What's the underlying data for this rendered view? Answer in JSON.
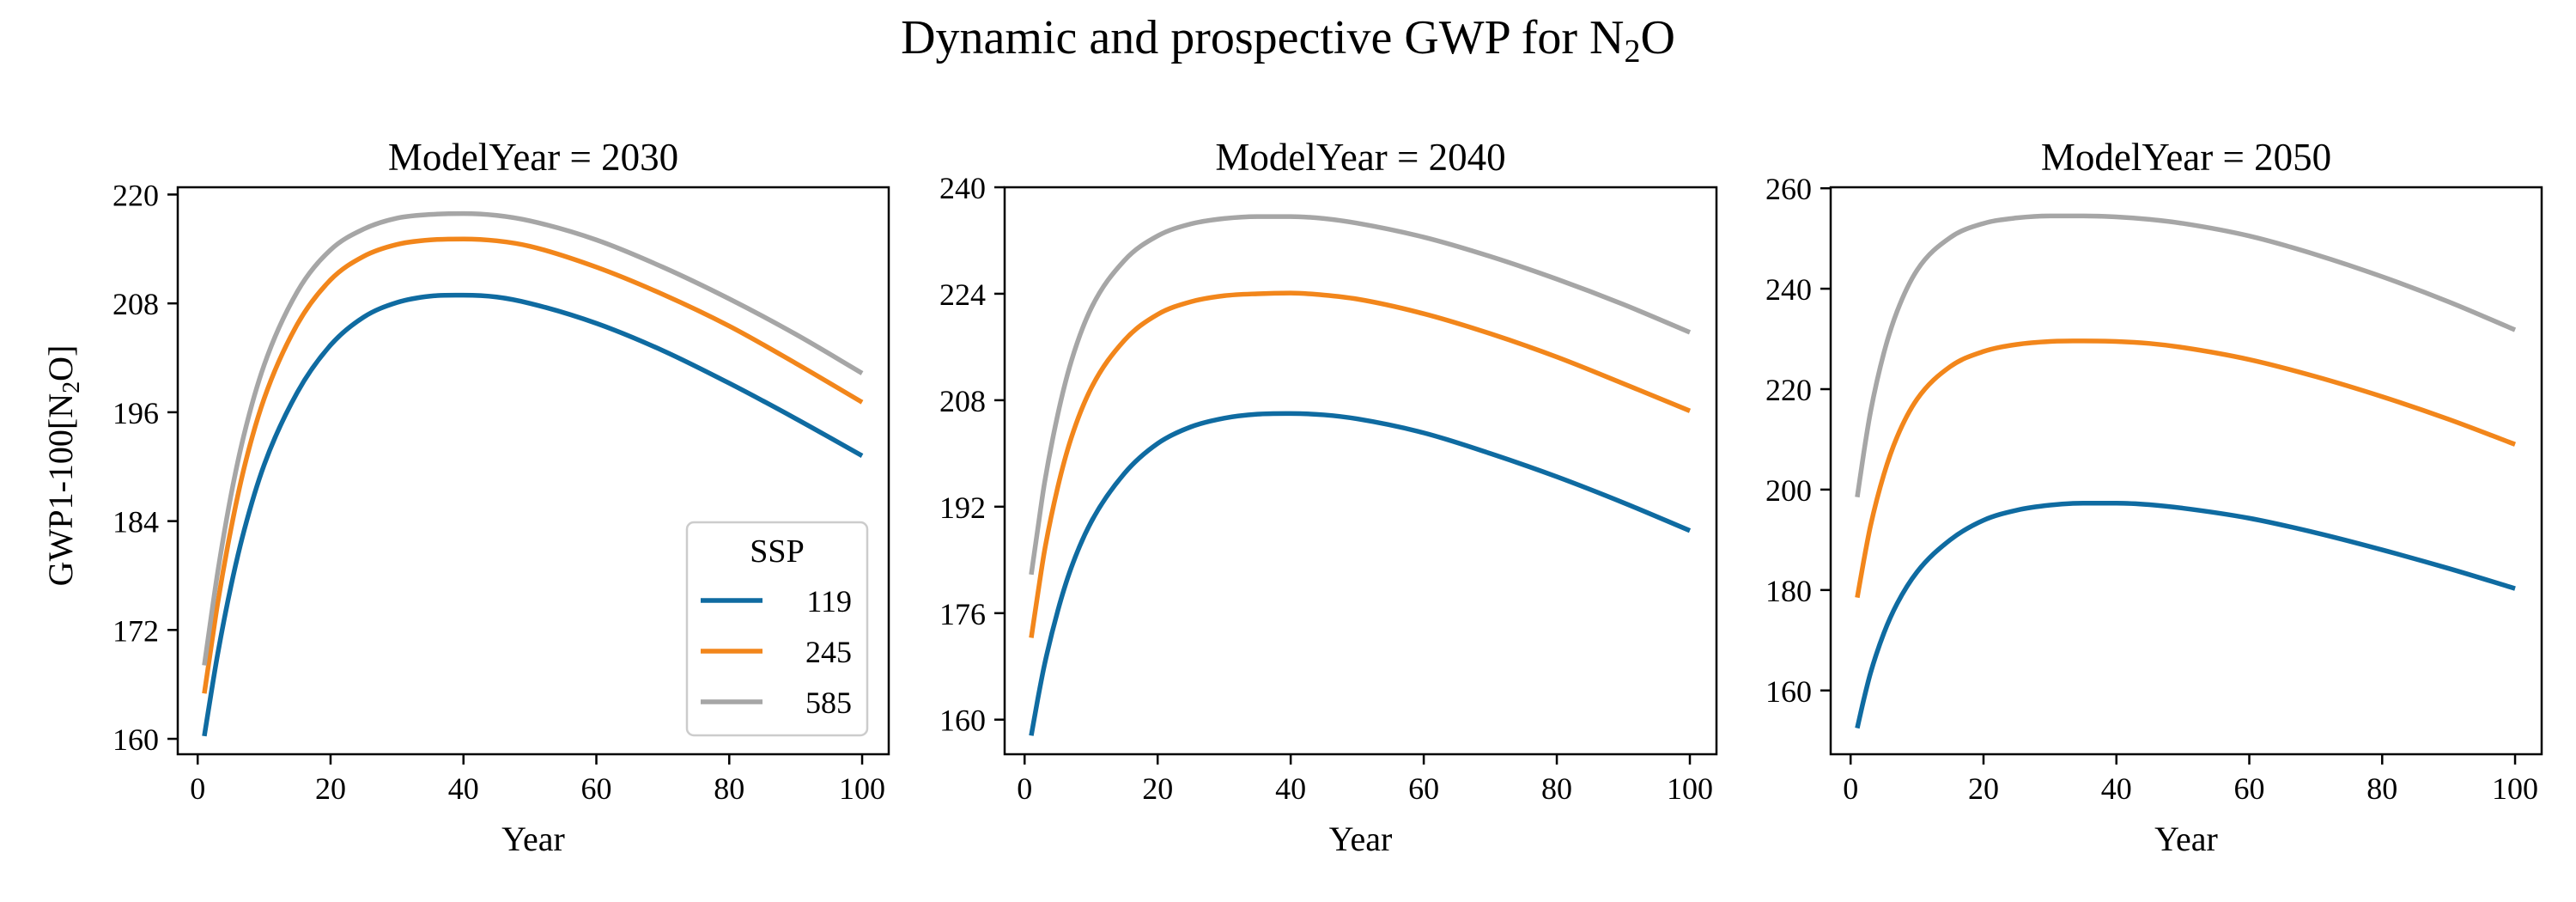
{
  "figure": {
    "title_main": "Dynamic and prospective GWP for N",
    "title_sub": "2",
    "title_tail": "O"
  },
  "y_label": {
    "main": "GWP1-100[N",
    "sub": "2",
    "tail": "O]"
  },
  "legend": {
    "title": "SSP",
    "entries": [
      "119",
      "245",
      "585"
    ]
  },
  "colors": {
    "119": "#0f6ba1",
    "245": "#f2861b",
    "585": "#a6a6a6"
  },
  "chart_data": [
    {
      "type": "line",
      "title": "ModelYear = 2030",
      "xlabel": "Year",
      "xlim": [
        -3,
        104
      ],
      "ylim": [
        158.3,
        220.8
      ],
      "xticks": [
        0,
        20,
        40,
        60,
        80,
        100
      ],
      "yticks": [
        160,
        172,
        184,
        196,
        208,
        220
      ],
      "grid": false,
      "legend_position": "lower-right",
      "series": [
        {
          "name": "119",
          "x": [
            1,
            2,
            3,
            5,
            7,
            10,
            15,
            20,
            25,
            30,
            35,
            40,
            45,
            50,
            60,
            70,
            80,
            90,
            100
          ],
          "values": [
            160.3,
            164.9,
            169.3,
            176.8,
            183.0,
            190.2,
            198.2,
            203.4,
            206.5,
            208.1,
            208.8,
            208.9,
            208.7,
            208.0,
            205.8,
            202.8,
            199.2,
            195.3,
            191.2
          ]
        },
        {
          "name": "245",
          "x": [
            1,
            2,
            3,
            5,
            7,
            10,
            15,
            20,
            25,
            30,
            35,
            40,
            45,
            50,
            60,
            70,
            80,
            90,
            100
          ],
          "values": [
            165.0,
            170.0,
            174.9,
            183.1,
            189.9,
            197.5,
            205.7,
            210.6,
            213.2,
            214.5,
            215.0,
            215.1,
            214.9,
            214.3,
            212.0,
            209.0,
            205.5,
            201.4,
            197.1
          ]
        },
        {
          "name": "585",
          "x": [
            1,
            2,
            3,
            5,
            7,
            10,
            15,
            20,
            25,
            30,
            35,
            40,
            45,
            50,
            60,
            70,
            80,
            90,
            100
          ],
          "values": [
            168.1,
            173.3,
            178.3,
            186.8,
            193.6,
            201.2,
            209.3,
            213.9,
            216.2,
            217.4,
            217.8,
            217.9,
            217.7,
            217.1,
            215.0,
            212.0,
            208.5,
            204.6,
            200.3
          ]
        }
      ]
    },
    {
      "type": "line",
      "title": "ModelYear = 2040",
      "xlabel": "Year",
      "xlim": [
        -3,
        104
      ],
      "ylim": [
        154.8,
        240.0
      ],
      "xticks": [
        0,
        20,
        40,
        60,
        80,
        100
      ],
      "yticks": [
        160,
        176,
        192,
        208,
        224,
        240
      ],
      "grid": false,
      "legend_position": "none",
      "series": [
        {
          "name": "119",
          "x": [
            1,
            2,
            3,
            5,
            7,
            10,
            15,
            20,
            25,
            30,
            35,
            40,
            45,
            50,
            60,
            70,
            80,
            90,
            100
          ],
          "values": [
            157.6,
            163.2,
            168.3,
            176.4,
            182.8,
            189.7,
            197.0,
            201.5,
            204.0,
            205.3,
            205.9,
            206.0,
            205.8,
            205.2,
            203.1,
            200.0,
            196.5,
            192.6,
            188.4
          ]
        },
        {
          "name": "245",
          "x": [
            1,
            2,
            3,
            5,
            7,
            10,
            15,
            20,
            25,
            30,
            35,
            40,
            45,
            50,
            60,
            70,
            80,
            90,
            100
          ],
          "values": [
            172.3,
            179.0,
            185.4,
            195.0,
            202.3,
            209.8,
            217.0,
            220.9,
            222.8,
            223.7,
            224.0,
            224.1,
            223.8,
            223.2,
            221.0,
            218.0,
            214.5,
            210.5,
            206.4
          ]
        },
        {
          "name": "585",
          "x": [
            1,
            2,
            3,
            5,
            7,
            10,
            15,
            20,
            25,
            30,
            35,
            40,
            45,
            50,
            60,
            70,
            80,
            90,
            100
          ],
          "values": [
            181.8,
            188.8,
            195.6,
            205.9,
            213.8,
            221.8,
            229.0,
            232.7,
            234.5,
            235.3,
            235.6,
            235.6,
            235.3,
            234.6,
            232.5,
            229.6,
            226.2,
            222.4,
            218.2
          ]
        }
      ]
    },
    {
      "type": "line",
      "title": "ModelYear = 2050",
      "xlabel": "Year",
      "xlim": [
        -3,
        104
      ],
      "ylim": [
        147.3,
        260.2
      ],
      "xticks": [
        0,
        20,
        40,
        60,
        80,
        100
      ],
      "yticks": [
        160,
        180,
        200,
        220,
        240,
        260
      ],
      "grid": false,
      "legend_position": "none",
      "series": [
        {
          "name": "119",
          "x": [
            1,
            2,
            3,
            5,
            7,
            10,
            15,
            20,
            25,
            30,
            35,
            40,
            45,
            50,
            60,
            70,
            80,
            90,
            100
          ],
          "values": [
            152.5,
            158.3,
            163.5,
            171.4,
            177.3,
            183.6,
            190.0,
            193.9,
            195.9,
            196.9,
            197.3,
            197.3,
            197.0,
            196.3,
            194.3,
            191.4,
            188.0,
            184.3,
            180.3
          ]
        },
        {
          "name": "245",
          "x": [
            1,
            2,
            3,
            5,
            7,
            10,
            15,
            20,
            25,
            30,
            35,
            40,
            45,
            50,
            60,
            70,
            80,
            90,
            100
          ],
          "values": [
            178.5,
            186.0,
            192.8,
            203.0,
            210.5,
            218.0,
            224.5,
            227.5,
            228.9,
            229.5,
            229.6,
            229.5,
            229.1,
            228.3,
            225.9,
            222.5,
            218.5,
            214.0,
            209.0
          ]
        },
        {
          "name": "585",
          "x": [
            1,
            2,
            3,
            5,
            7,
            10,
            15,
            20,
            25,
            30,
            35,
            40,
            45,
            50,
            60,
            70,
            80,
            90,
            100
          ],
          "values": [
            198.5,
            207.5,
            215.5,
            227.2,
            235.5,
            243.7,
            250.2,
            253.0,
            254.1,
            254.5,
            254.5,
            254.3,
            253.8,
            253.0,
            250.5,
            246.8,
            242.4,
            237.4,
            231.8
          ]
        }
      ]
    }
  ]
}
